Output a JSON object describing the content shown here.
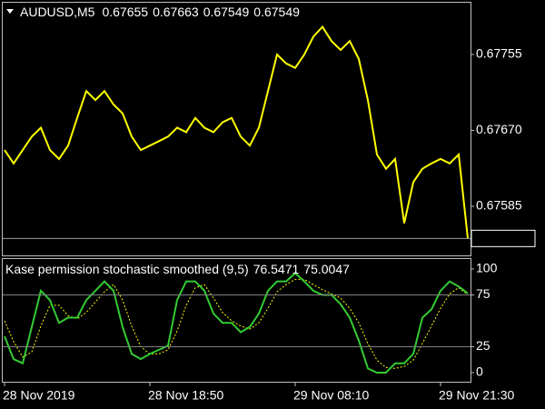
{
  "chart_data": [
    {
      "type": "line",
      "title": "AUDUSD,M5",
      "ohlc": [
        0.67655,
        0.67663,
        0.67549,
        0.67549
      ],
      "series": [
        {
          "color": "#ffff00",
          "values": [
            0.67648,
            0.67633,
            0.67648,
            0.67663,
            0.67673,
            0.67648,
            0.67638,
            0.67653,
            0.67684,
            0.67714,
            0.67704,
            0.67714,
            0.67699,
            0.67689,
            0.67663,
            0.67648,
            0.67653,
            0.67658,
            0.67663,
            0.67673,
            0.67668,
            0.67684,
            0.67673,
            0.67668,
            0.67679,
            0.67684,
            0.67663,
            0.67653,
            0.67673,
            0.67714,
            0.67755,
            0.67745,
            0.6774,
            0.67755,
            0.67775,
            0.67786,
            0.6777,
            0.6776,
            0.6777,
            0.6775,
            0.67704,
            0.67643,
            0.67627,
            0.67638,
            0.67566,
            0.67612,
            0.67627,
            0.67633,
            0.67638,
            0.67633,
            0.67643,
            0.67549
          ]
        }
      ],
      "last_price": 0.67549,
      "ylim": [
        0.6753,
        0.67814
      ],
      "yticks": [
        0.67585,
        {
          "value": 0.6767,
          "label": "0.67670"
        },
        0.67755
      ]
    },
    {
      "type": "line",
      "title": "Kase permission stochastic smoothed (9,5)",
      "series": [
        {
          "color": "#33cc33",
          "values": [
            35,
            13,
            9,
            44,
            79,
            70,
            48,
            53,
            53,
            70,
            79,
            88,
            79,
            44,
            18,
            13,
            18,
            22,
            26,
            70,
            88,
            88,
            79,
            57,
            48,
            48,
            39,
            44,
            57,
            79,
            88,
            88,
            96,
            88,
            79,
            75,
            75,
            66,
            53,
            31,
            4,
            0,
            0,
            9,
            9,
            18,
            53,
            61,
            79,
            88,
            83,
            76.5471
          ]
        },
        {
          "color": "#ffff00",
          "dashed": true,
          "values": [
            50,
            30,
            15,
            20,
            45,
            65,
            65,
            55,
            52,
            58,
            68,
            78,
            85,
            70,
            45,
            25,
            18,
            18,
            22,
            40,
            65,
            82,
            85,
            72,
            58,
            50,
            45,
            42,
            48,
            62,
            78,
            85,
            90,
            90,
            85,
            80,
            76,
            72,
            62,
            48,
            28,
            12,
            5,
            4,
            6,
            12,
            28,
            45,
            62,
            76,
            82,
            75.0047
          ]
        }
      ],
      "levels": [
        25,
        75
      ],
      "ylim": [
        -8.8,
        110.5
      ],
      "yticks": [
        0,
        25,
        75,
        100
      ],
      "xticks": [
        {
          "value": 0,
          "label": "28 Nov 2019"
        },
        {
          "value": 16,
          "label": "28 Nov 18:50"
        },
        {
          "value": 32,
          "label": "29 Nov 08:10"
        },
        {
          "value": 48,
          "label": "29 Nov 21:30"
        }
      ]
    }
  ]
}
